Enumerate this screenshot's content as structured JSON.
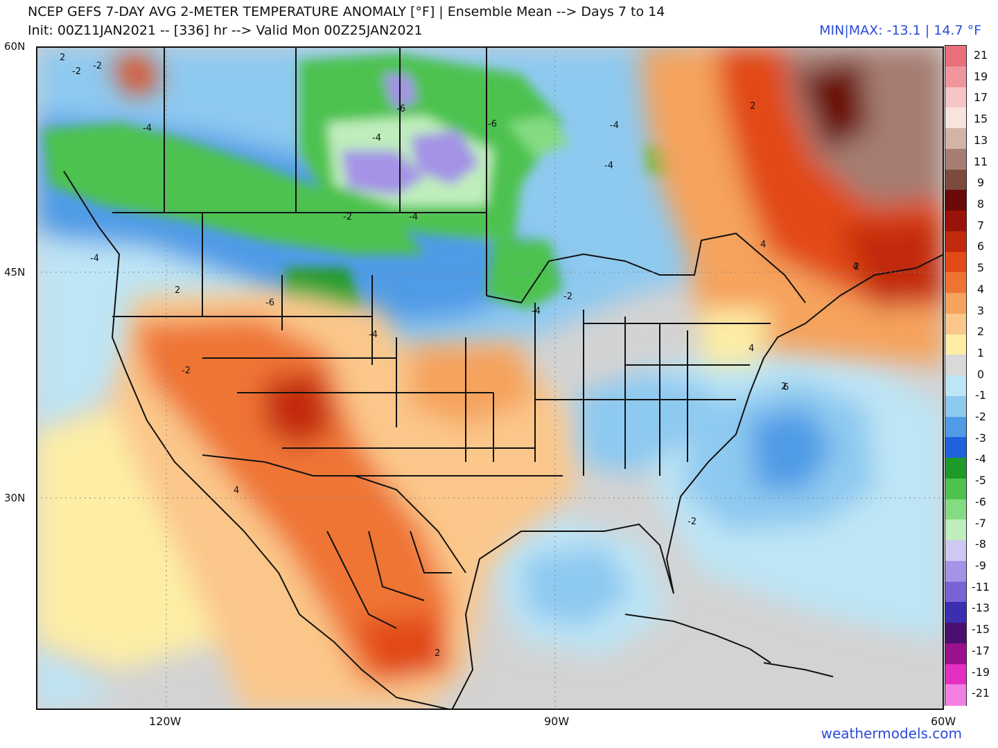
{
  "header": {
    "title_line1": "NCEP GEFS 7-DAY AVG 2-METER TEMPERATURE ANOMALY [°F] | Ensemble Mean --> Days 7 to 14",
    "title_line2": "Init: 00Z11JAN2021 -- [336] hr --> Valid Mon 00Z25JAN2021",
    "minmax": "MIN|MAX: -13.1 | 14.7 °F"
  },
  "axes": {
    "lat_labels": [
      "60N",
      "45N",
      "30N"
    ],
    "lon_labels": [
      "120W",
      "90W",
      "60W"
    ]
  },
  "credit": "weathermodels.com",
  "contour_labels": [
    "2",
    "-2",
    "-4",
    "-6",
    "-4",
    "-6",
    "-4",
    "-4",
    "-2",
    "-4",
    "-6",
    "-4",
    "-2",
    "-4",
    "-4",
    "-2",
    "2",
    "4",
    "2",
    "-2",
    "4",
    "2",
    "2",
    "4",
    "6",
    "2",
    "-2",
    "4",
    "-2"
  ],
  "legend": {
    "labels": [
      "21",
      "19",
      "17",
      "15",
      "13",
      "11",
      "9",
      "8",
      "7",
      "6",
      "5",
      "4",
      "3",
      "2",
      "1",
      "0",
      "-1",
      "-2",
      "-3",
      "-4",
      "-5",
      "-6",
      "-7",
      "-8",
      "-9",
      "-11",
      "-13",
      "-15",
      "-17",
      "-19",
      "-21"
    ],
    "colors": [
      "#e9707a",
      "#f0959c",
      "#f7c5c6",
      "#f7e4dc",
      "#d3b3a8",
      "#a67d72",
      "#7d4a3e",
      "#6b0a06",
      "#9a1308",
      "#c22a0d",
      "#e24a18",
      "#ef7434",
      "#f5a35d",
      "#fbc78a",
      "#fdeea4",
      "#d9d9d9",
      "#bde5f5",
      "#8ec9f0",
      "#4f9be6",
      "#1f62dc",
      "#1e9a2a",
      "#4dc24f",
      "#84db82",
      "#bfeebc",
      "#cfc8f2",
      "#a493e6",
      "#7a63d6",
      "#3b2fb0",
      "#4a1070",
      "#9a108f",
      "#e32fc4",
      "#f37fe3"
    ]
  },
  "colors": {
    "ocean_neutral": "#d3d3d3",
    "pos_anomaly": "#f5a35d",
    "neg_anomaly": "#4f9be6",
    "cold_green": "#4dc24f",
    "credit_blue": "#2b4bd8"
  }
}
